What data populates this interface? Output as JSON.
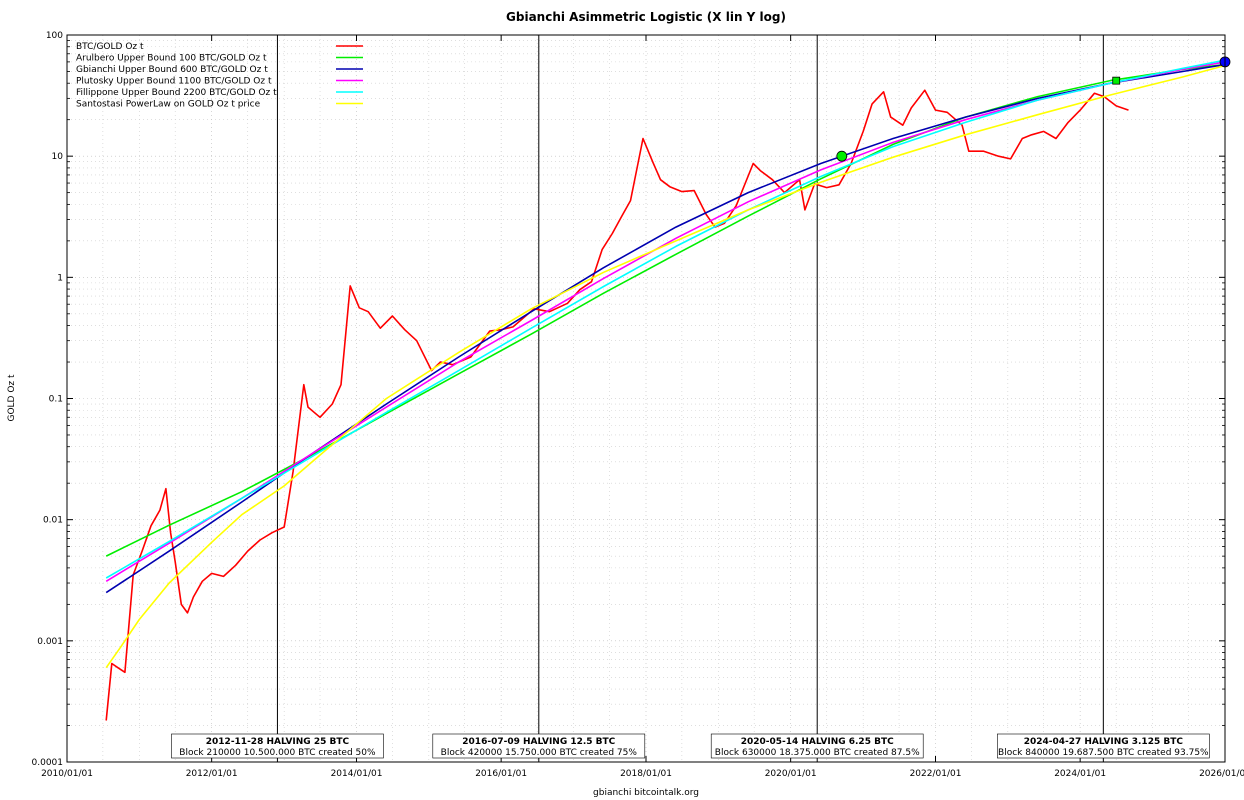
{
  "chart_data": {
    "type": "line",
    "title": "Gbianchi Asimmetric Logistic (X lin Y log)",
    "xlabel": "gbianchi bitcointalk.org",
    "ylabel": "GOLD Oz t",
    "y_scale": "log",
    "xlim": [
      "2010/01/01",
      "2026/01/01"
    ],
    "ylim": [
      0.0001,
      100
    ],
    "x_tick_labels": [
      "2010/01/01",
      "2012/01/01",
      "2014/01/01",
      "2016/01/01",
      "2018/01/01",
      "2020/01/01",
      "2022/01/01",
      "2024/01/01",
      "2026/01/01"
    ],
    "y_tick_labels": [
      "0.0001",
      "0.001",
      "0.01",
      "0.1",
      "1",
      "10",
      "100"
    ],
    "grid": true,
    "legend_position": "top-left",
    "series": [
      {
        "name": "BTC/GOLD Oz t",
        "color": "#ff0000",
        "x": [
          "2010/07/18",
          "2010/08/15",
          "2010/09/15",
          "2010/10/20",
          "2010/12/01",
          "2011/01/15",
          "2011/03/01",
          "2011/04/15",
          "2011/05/15",
          "2011/06/08",
          "2011/07/01",
          "2011/08/01",
          "2011/09/01",
          "2011/10/01",
          "2011/11/15",
          "2012/01/01",
          "2012/03/01",
          "2012/05/01",
          "2012/07/01",
          "2012/09/01",
          "2012/11/01",
          "2013/01/01",
          "2013/02/15",
          "2013/04/10",
          "2013/05/01",
          "2013/07/01",
          "2013/09/01",
          "2013/10/15",
          "2013/11/30",
          "2014/01/15",
          "2014/03/01",
          "2014/05/01",
          "2014/07/01",
          "2014/09/01",
          "2014/11/01",
          "2015/01/15",
          "2015/03/01",
          "2015/05/01",
          "2015/08/01",
          "2015/11/04",
          "2016/01/01",
          "2016/03/01",
          "2016/06/15",
          "2016/09/01",
          "2016/12/01",
          "2017/02/01",
          "2017/04/01",
          "2017/05/25",
          "2017/07/15",
          "2017/09/01",
          "2017/10/15",
          "2017/12/17",
          "2018/02/05",
          "2018/03/15",
          "2018/05/01",
          "2018/07/01",
          "2018/09/01",
          "2018/11/01",
          "2018/12/15",
          "2019/02/01",
          "2019/04/01",
          "2019/06/26",
          "2019/08/01",
          "2019/10/01",
          "2019/12/01",
          "2020/02/15",
          "2020/03/13",
          "2020/05/01",
          "2020/07/01",
          "2020/09/01",
          "2020/11/01",
          "2021/01/01",
          "2021/02/15",
          "2021/04/14",
          "2021/05/20",
          "2021/07/20",
          "2021/09/01",
          "2021/11/08",
          "2022/01/01",
          "2022/03/01",
          "2022/05/15",
          "2022/06/18",
          "2022/09/01",
          "2022/11/15",
          "2023/01/15",
          "2023/03/15",
          "2023/05/01",
          "2023/07/01",
          "2023/09/01",
          "2023/11/01",
          "2024/01/01",
          "2024/03/13",
          "2024/05/01",
          "2024/07/01",
          "2024/09/01"
        ],
        "y": [
          0.00022,
          0.00065,
          0.0006,
          0.00055,
          0.0035,
          0.0055,
          0.0089,
          0.012,
          0.018,
          0.0078,
          0.0045,
          0.002,
          0.0017,
          0.0023,
          0.0031,
          0.0036,
          0.0034,
          0.0042,
          0.0055,
          0.0068,
          0.0078,
          0.0087,
          0.025,
          0.13,
          0.085,
          0.07,
          0.09,
          0.13,
          0.85,
          0.56,
          0.52,
          0.38,
          0.48,
          0.37,
          0.3,
          0.17,
          0.2,
          0.19,
          0.22,
          0.36,
          0.37,
          0.39,
          0.55,
          0.52,
          0.61,
          0.79,
          0.92,
          1.7,
          2.3,
          3.2,
          4.3,
          14,
          8.9,
          6.4,
          5.6,
          5.1,
          5.2,
          3.3,
          2.6,
          2.8,
          3.9,
          8.7,
          7.6,
          6.4,
          5.0,
          6.4,
          3.6,
          5.9,
          5.5,
          5.8,
          8.7,
          16,
          27,
          34,
          21,
          18,
          25,
          35,
          24,
          23,
          18,
          11,
          11,
          10,
          9.5,
          14,
          15,
          16,
          14,
          19,
          24,
          33,
          31,
          26,
          24
        ]
      },
      {
        "name": "Arulbero Upper Bound 100  BTC/GOLD Oz t",
        "color": "#00ee00",
        "x": [
          "2010/07/18",
          "2011/06/01",
          "2012/06/01",
          "2013/06/01",
          "2014/06/01",
          "2015/06/01",
          "2016/06/01",
          "2017/06/01",
          "2018/06/01",
          "2019/06/01",
          "2020/06/01",
          "2021/06/01",
          "2022/06/01",
          "2023/06/01",
          "2024/06/01",
          "2025/06/01",
          "2026/01/01"
        ],
        "y": [
          0.005,
          0.009,
          0.017,
          0.035,
          0.075,
          0.16,
          0.34,
          0.74,
          1.55,
          3.2,
          6.5,
          12.5,
          21,
          31,
          42,
          52,
          57
        ]
      },
      {
        "name": "Gbianchi Upper Bound 600  BTC/GOLD Oz t",
        "color": "#0000b0",
        "x": [
          "2010/07/18",
          "2011/06/01",
          "2012/06/01",
          "2013/06/01",
          "2014/06/01",
          "2015/06/01",
          "2016/06/01",
          "2017/06/01",
          "2018/06/01",
          "2019/06/01",
          "2020/06/01",
          "2021/06/01",
          "2022/06/01",
          "2023/06/01",
          "2024/06/01",
          "2025/06/01",
          "2026/01/01"
        ],
        "y": [
          0.0025,
          0.0055,
          0.014,
          0.036,
          0.09,
          0.22,
          0.52,
          1.2,
          2.6,
          5.0,
          8.7,
          14,
          21,
          30,
          40,
          50,
          57
        ]
      },
      {
        "name": "Plutosky Upper Bound 1100  BTC/GOLD Oz t",
        "color": "#ff00ff",
        "x": [
          "2010/07/18",
          "2011/06/01",
          "2012/06/01",
          "2013/06/01",
          "2014/06/01",
          "2015/06/01",
          "2016/06/01",
          "2017/06/01",
          "2018/06/01",
          "2019/06/01",
          "2020/06/01",
          "2021/06/01",
          "2022/06/01",
          "2023/06/01",
          "2024/06/01",
          "2025/06/01",
          "2026/01/01"
        ],
        "y": [
          0.0031,
          0.0064,
          0.015,
          0.036,
          0.085,
          0.2,
          0.44,
          0.98,
          2.1,
          4.2,
          7.7,
          13,
          20,
          29,
          40,
          52,
          60
        ]
      },
      {
        "name": "Fillippone Upper Bound 2200  BTC/GOLD Oz t",
        "color": "#00ffff",
        "x": [
          "2010/07/18",
          "2011/06/01",
          "2012/06/01",
          "2013/06/01",
          "2014/06/01",
          "2015/06/01",
          "2016/06/01",
          "2017/06/01",
          "2018/06/01",
          "2019/06/01",
          "2020/06/01",
          "2021/06/01",
          "2022/06/01",
          "2023/06/01",
          "2024/06/01",
          "2025/06/01",
          "2026/01/01"
        ],
        "y": [
          0.0033,
          0.0066,
          0.015,
          0.034,
          0.077,
          0.17,
          0.38,
          0.84,
          1.8,
          3.6,
          6.8,
          12,
          19,
          29,
          40,
          53,
          62
        ]
      },
      {
        "name": "Santostasi PowerLaw on GOLD Oz t price",
        "color": "#ffff00",
        "x": [
          "2010/07/18",
          "2010/10/01",
          "2011/01/01",
          "2011/06/01",
          "2012/01/01",
          "2012/06/01",
          "2013/01/01",
          "2013/06/01",
          "2014/06/01",
          "2015/06/01",
          "2016/06/01",
          "2017/06/01",
          "2018/06/01",
          "2019/06/01",
          "2020/06/01",
          "2021/06/01",
          "2022/06/01",
          "2023/06/01",
          "2024/06/01",
          "2025/06/01",
          "2026/01/01"
        ],
        "y": [
          0.0006,
          0.0009,
          0.0015,
          0.003,
          0.0065,
          0.011,
          0.019,
          0.031,
          0.1,
          0.24,
          0.55,
          1.1,
          2.0,
          3.6,
          6.1,
          9.8,
          15,
          22,
          32,
          45,
          56
        ]
      }
    ],
    "markers": [
      {
        "shape": "circle",
        "fill": "#00ee00",
        "x": "2020/09/15",
        "y": 10
      },
      {
        "shape": "square",
        "fill": "#00ee00",
        "x": "2024/07/01",
        "y": 42
      },
      {
        "shape": "circle",
        "fill": "#0000ff",
        "x": "2026/01/01",
        "y": 60
      }
    ],
    "halvings": [
      {
        "date": "2012/11/28",
        "label": "2012-11-28 HALVING 25 BTC",
        "sub": "Block 210000 10.500.000 BTC created 50%"
      },
      {
        "date": "2016/07/09",
        "label": "2016-07-09 HALVING 12.5 BTC",
        "sub": "Block 420000 15.750.000 BTC created 75%"
      },
      {
        "date": "2020/05/14",
        "label": "2020-05-14 HALVING 6.25 BTC",
        "sub": "Block 630000 18.375.000 BTC created 87.5%"
      },
      {
        "date": "2024/04/27",
        "label": "2024-04-27 HALVING 3.125 BTC",
        "sub": "Block 840000 19.687.500 BTC created 93.75%"
      }
    ]
  }
}
